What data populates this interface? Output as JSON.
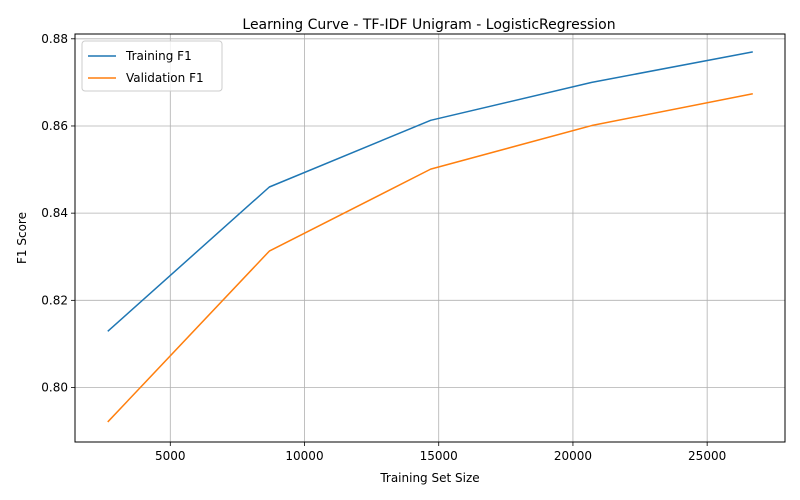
{
  "chart_data": {
    "type": "line",
    "title": "Learning Curve - TF-IDF Unigram - LogisticRegression",
    "xlabel": "Training Set Size",
    "ylabel": "F1 Score",
    "xlim": [
      1450,
      27900
    ],
    "ylim": [
      0.7875,
      0.8811
    ],
    "xticks": [
      5000,
      10000,
      15000,
      20000,
      25000
    ],
    "xtick_labels": [
      "5000",
      "10000",
      "15000",
      "20000",
      "25000"
    ],
    "yticks": [
      0.8,
      0.82,
      0.84,
      0.86,
      0.88
    ],
    "ytick_labels": [
      "0.80",
      "0.82",
      "0.84",
      "0.86",
      "0.88"
    ],
    "grid": true,
    "legend_position": "top-left",
    "x": [
      2670,
      8690,
      14700,
      20700,
      26700
    ],
    "series": [
      {
        "name": "Training F1",
        "color": "#1f77b4",
        "values": [
          0.8129,
          0.846,
          0.8613,
          0.87,
          0.877
        ]
      },
      {
        "name": "Validation F1",
        "color": "#ff7f0e",
        "values": [
          0.7921,
          0.8313,
          0.8501,
          0.8601,
          0.8674
        ]
      }
    ]
  }
}
